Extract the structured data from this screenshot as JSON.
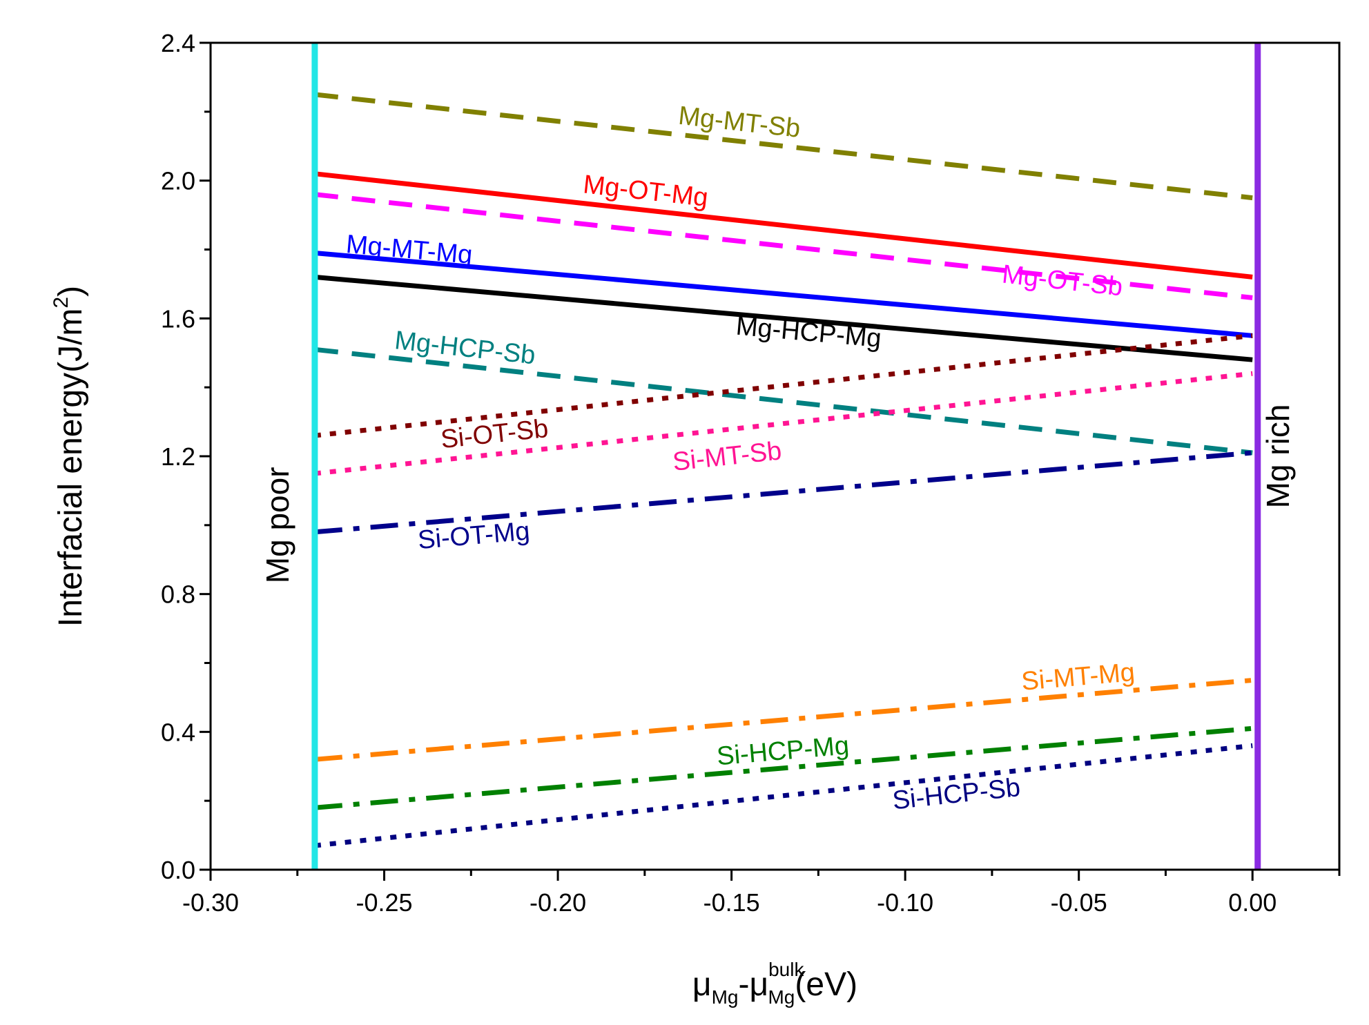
{
  "chart_data": {
    "type": "line",
    "title": "",
    "ylabel": "Interfacial energy(J/m",
    "ylabel_sup": "2",
    "ylabel_close": ")",
    "xlabel": {
      "mu1": "μ",
      "sub1": "Mg",
      "dash": "-",
      "mu2": "μ",
      "sup2": "bulk",
      "sub2": "Mg",
      "unit": "(eV)"
    },
    "xlim": [
      -0.3,
      0.025
    ],
    "ylim": [
      0.0,
      2.4
    ],
    "xticks": [
      -0.3,
      -0.25,
      -0.2,
      -0.15,
      -0.1,
      -0.05,
      0.0
    ],
    "xtick_labels": [
      "-0.30",
      "-0.25",
      "-0.20",
      "-0.15",
      "-0.10",
      "-0.05",
      "0.00"
    ],
    "yticks": [
      0.0,
      0.4,
      0.8,
      1.2,
      1.6,
      2.0,
      2.4
    ],
    "ytick_labels": [
      "0.0",
      "0.4",
      "0.8",
      "1.2",
      "1.6",
      "2.0",
      "2.4"
    ],
    "x_minor_step": 0.025,
    "y_minor_step": 0.2,
    "vertical_markers": [
      {
        "name": "mg-poor-line",
        "x": -0.27,
        "color": "#22e6e6",
        "label": "Mg poor",
        "label_x": -0.2775,
        "label_y": 1.0
      },
      {
        "name": "mg-rich-line",
        "x": 0.0015,
        "color": "#8a2be2",
        "label": "Mg rich",
        "label_x": 0.0105,
        "label_y": 1.2
      }
    ],
    "series": [
      {
        "name": "Mg-MT-Sb",
        "x": [
          -0.27,
          0.0
        ],
        "y": [
          2.25,
          1.95
        ],
        "color": "#808000",
        "style": "dash",
        "label_x": -0.148,
        "label_y": 2.145
      },
      {
        "name": "Mg-OT-Mg",
        "x": [
          -0.27,
          0.0
        ],
        "y": [
          2.02,
          1.72
        ],
        "color": "#ff0000",
        "style": "solid",
        "label_x": -0.175,
        "label_y": 1.945
      },
      {
        "name": "Mg-OT-Sb",
        "x": [
          -0.27,
          0.0
        ],
        "y": [
          1.96,
          1.66
        ],
        "color": "#ff00ff",
        "style": "dash",
        "label_x": -0.055,
        "label_y": 1.685
      },
      {
        "name": "Mg-MT-Mg",
        "x": [
          -0.27,
          0.0
        ],
        "y": [
          1.79,
          1.55
        ],
        "color": "#0000ff",
        "style": "solid",
        "label_x": -0.243,
        "label_y": 1.775
      },
      {
        "name": "Mg-HCP-Mg",
        "x": [
          -0.27,
          0.0
        ],
        "y": [
          1.72,
          1.48
        ],
        "color": "#000000",
        "style": "solid",
        "label_x": -0.128,
        "label_y": 1.535
      },
      {
        "name": "Mg-HCP-Sb",
        "x": [
          -0.27,
          0.0
        ],
        "y": [
          1.51,
          1.21
        ],
        "color": "#008080",
        "style": "dash",
        "label_x": -0.227,
        "label_y": 1.49
      },
      {
        "name": "Si-OT-Sb",
        "x": [
          -0.27,
          0.0
        ],
        "y": [
          1.26,
          1.55
        ],
        "color": "#800000",
        "style": "dot",
        "label_x": -0.218,
        "label_y": 1.24
      },
      {
        "name": "Si-MT-Sb",
        "x": [
          -0.27,
          0.0
        ],
        "y": [
          1.15,
          1.44
        ],
        "color": "#ff1493",
        "style": "dot",
        "label_x": -0.151,
        "label_y": 1.175
      },
      {
        "name": "Si-OT-Mg",
        "x": [
          -0.27,
          0.0
        ],
        "y": [
          0.98,
          1.21
        ],
        "color": "#00008b",
        "style": "dashdot",
        "label_x": -0.224,
        "label_y": 0.945
      },
      {
        "name": "Si-MT-Mg",
        "x": [
          -0.27,
          0.0
        ],
        "y": [
          0.32,
          0.55
        ],
        "color": "#ff8000",
        "style": "dashdot",
        "label_x": -0.05,
        "label_y": 0.535
      },
      {
        "name": "Si-HCP-Mg",
        "x": [
          -0.27,
          0.0
        ],
        "y": [
          0.18,
          0.41
        ],
        "color": "#008000",
        "style": "dashdot",
        "label_x": -0.135,
        "label_y": 0.32
      },
      {
        "name": "Si-HCP-Sb",
        "x": [
          -0.27,
          0.0
        ],
        "y": [
          0.07,
          0.36
        ],
        "color": "#000080",
        "style": "dot",
        "label_x": -0.085,
        "label_y": 0.195
      }
    ]
  }
}
